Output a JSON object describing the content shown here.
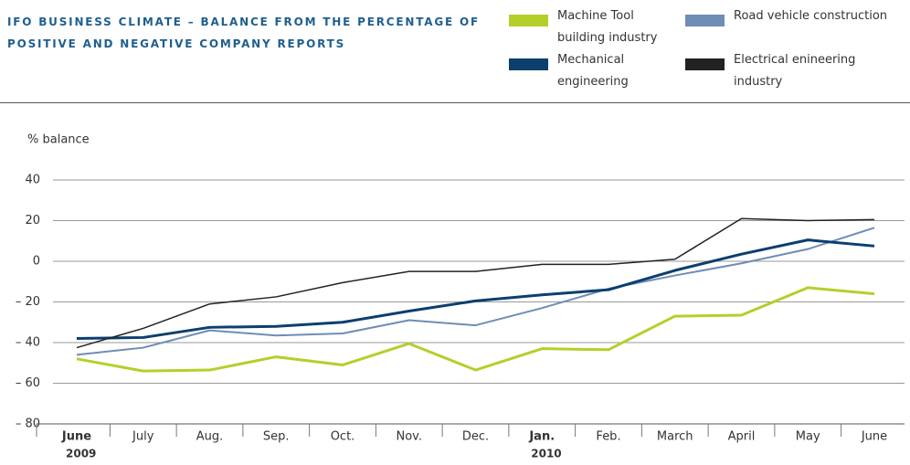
{
  "chart_data": {
    "type": "line",
    "title": "IFO BUSINESS CLIMATE – BALANCE FROM THE PERCENTAGE OF POSITIVE AND NEGATIVE COMPANY REPORTS",
    "y_label": "% balance",
    "categories": [
      "June",
      "July",
      "Aug.",
      "Sep.",
      "Oct.",
      "Nov.",
      "Dec.",
      "Jan.",
      "Feb.",
      "March",
      "April",
      "May",
      "June"
    ],
    "category_years": [
      "2009",
      null,
      null,
      null,
      null,
      null,
      null,
      "2010",
      null,
      null,
      null,
      null,
      null
    ],
    "ylim": [
      -80,
      40
    ],
    "yticks": [
      {
        "value": -80,
        "label": "– 80"
      },
      {
        "value": -60,
        "label": "– 60"
      },
      {
        "value": -40,
        "label": "– 40"
      },
      {
        "value": -20,
        "label": "– 20"
      },
      0,
      20,
      40
    ],
    "grid": true,
    "series": [
      {
        "name": "Machine Tool building industry",
        "color": "#b5cf2a",
        "width": 3,
        "values": [
          -48,
          -54,
          -53.5,
          -47,
          -51,
          -40.5,
          -53.5,
          -43,
          -43.5,
          -27,
          -26.5,
          -13,
          -16
        ]
      },
      {
        "name": "Road vehicle construction",
        "color": "#6f8db5",
        "width": 2,
        "values": [
          -46,
          -42.5,
          -34,
          -36.5,
          -35.5,
          -29,
          -31.5,
          -23,
          -13.5,
          -7,
          -1,
          6,
          16.5
        ]
      },
      {
        "name": "Mechanical engineering",
        "color": "#0b3f6e",
        "width": 3,
        "values": [
          -38,
          -37.5,
          -32.5,
          -32,
          -30,
          -24.5,
          -19.5,
          -16.5,
          -14,
          -4.5,
          3.5,
          10.5,
          7.5
        ]
      },
      {
        "name": "Electrical enineering industry",
        "color": "#222222",
        "width": 1.5,
        "values": [
          -42.5,
          -33,
          -21,
          -17.5,
          -10.5,
          -5,
          -5,
          -1.5,
          -1.5,
          1,
          21,
          20,
          20.5
        ]
      }
    ]
  }
}
